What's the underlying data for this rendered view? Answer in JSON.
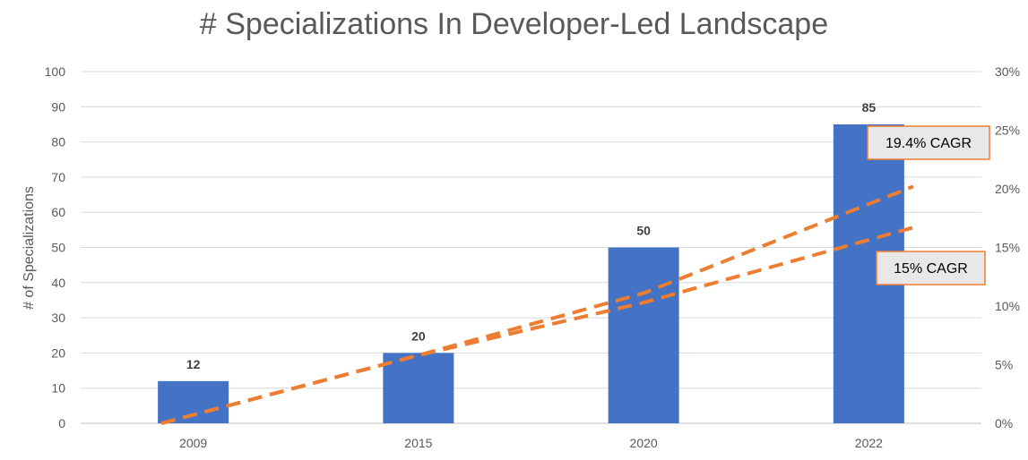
{
  "chart_data": {
    "type": "bar",
    "title": "# Specializations In Developer-Led Landscape",
    "ylabel": "# of Specializations",
    "categories": [
      "2009",
      "2015",
      "2020",
      "2022"
    ],
    "values": [
      12,
      20,
      50,
      85
    ],
    "data_labels": [
      "12",
      "20",
      "50",
      "85"
    ],
    "ylim": [
      0,
      100
    ],
    "yticks": [
      0,
      10,
      20,
      30,
      40,
      50,
      60,
      70,
      80,
      90,
      100
    ],
    "y2lim": [
      0,
      0.3
    ],
    "y2ticks": [
      "0%",
      "5%",
      "10%",
      "15%",
      "20%",
      "25%",
      "30%"
    ],
    "grid": true,
    "bar_color": "#4472C4",
    "trendlines": [
      {
        "label": "19.4% CAGR",
        "color": "#ED7D31",
        "style": "dashed",
        "x": [
          0,
          1,
          2,
          3
        ],
        "y2": [
          0.0,
          0.058,
          0.111,
          0.202
        ]
      },
      {
        "label": "15% CAGR",
        "color": "#ED7D31",
        "style": "dashed",
        "x": [
          0,
          1,
          2,
          3
        ],
        "y2": [
          0.0,
          0.058,
          0.103,
          0.167
        ]
      }
    ]
  }
}
